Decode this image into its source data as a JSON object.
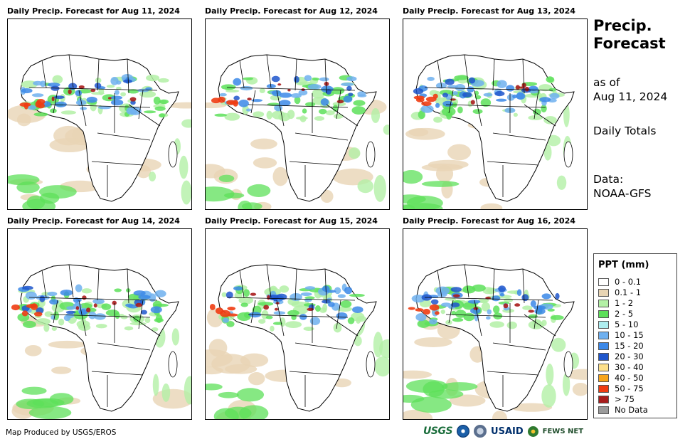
{
  "panels": [
    {
      "title": "Daily Precip. Forecast for Aug 11, 2024",
      "rain_level": 0.55
    },
    {
      "title": "Daily Precip. Forecast for Aug 12, 2024",
      "rain_level": 0.5
    },
    {
      "title": "Daily Precip. Forecast for Aug 13, 2024",
      "rain_level": 0.6
    },
    {
      "title": "Daily Precip. Forecast for Aug 14, 2024",
      "rain_level": 0.6
    },
    {
      "title": "Daily Precip. Forecast for Aug 15, 2024",
      "rain_level": 0.55
    },
    {
      "title": "Daily Precip. Forecast for Aug 16, 2024",
      "rain_level": 0.6
    }
  ],
  "sidebar": {
    "heading_line1": "Precip.",
    "heading_line2": "Forecast",
    "as_of_line1": "as of",
    "as_of_line2": "Aug 11, 2024",
    "totals": "Daily Totals",
    "data_line1": "Data:",
    "data_line2": "NOAA-GFS"
  },
  "legend": {
    "title": "PPT (mm)",
    "items": [
      {
        "label": "0 - 0.1",
        "color": "#ffffff"
      },
      {
        "label": "0.1 - 1",
        "color": "#e8d5b5"
      },
      {
        "label": "1 - 2",
        "color": "#b3f0a6"
      },
      {
        "label": "2 - 5",
        "color": "#5de05a"
      },
      {
        "label": "5 - 10",
        "color": "#aeeef0"
      },
      {
        "label": "10 - 15",
        "color": "#6fb0ef"
      },
      {
        "label": "15 - 20",
        "color": "#3b88e8"
      },
      {
        "label": "20 - 30",
        "color": "#1f56cc"
      },
      {
        "label": "30 - 40",
        "color": "#fde08a"
      },
      {
        "label": "40 - 50",
        "color": "#f7a51b"
      },
      {
        "label": "50 - 75",
        "color": "#ef3c12"
      },
      {
        "label": "> 75",
        "color": "#a81c1c"
      },
      {
        "label": "No Data",
        "color": "#9b9b9b"
      }
    ]
  },
  "footer": {
    "credit": "Map Produced by USGS/EROS",
    "logo_usgs": "USGS",
    "logo_usaid": "USAID",
    "logo_fews": "FEWS NET"
  }
}
